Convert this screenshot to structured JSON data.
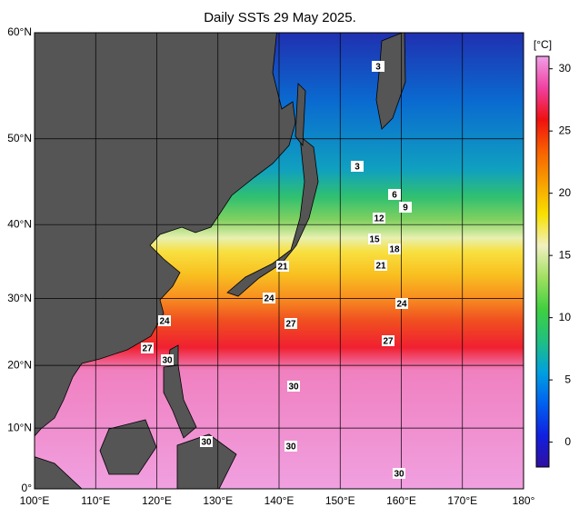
{
  "title": "Daily SSTs 29 May 2025.",
  "map": {
    "lonlim": [
      100,
      180
    ],
    "latlim": [
      0,
      60
    ],
    "lon_ticks": [
      {
        "value": 100,
        "label": "100°E"
      },
      {
        "value": 110,
        "label": "110°E"
      },
      {
        "value": 120,
        "label": "120°E"
      },
      {
        "value": 130,
        "label": "130°E"
      },
      {
        "value": 140,
        "label": "140°E"
      },
      {
        "value": 150,
        "label": "150°E"
      },
      {
        "value": 160,
        "label": "160°E"
      },
      {
        "value": 170,
        "label": "170°E"
      },
      {
        "value": 180,
        "label": "180°"
      }
    ],
    "lat_ticks": [
      {
        "value": 0,
        "label": "0°"
      },
      {
        "value": 10,
        "label": "10°N"
      },
      {
        "value": 20,
        "label": "20°N"
      },
      {
        "value": 30,
        "label": "30°N"
      },
      {
        "value": 40,
        "label": "40°N"
      },
      {
        "value": 50,
        "label": "50°N"
      },
      {
        "value": 60,
        "label": "60°N"
      }
    ],
    "contour_labels": [
      3,
      3,
      6,
      9,
      12,
      15,
      18,
      21,
      21,
      24,
      24,
      24,
      27,
      27,
      27,
      30,
      30,
      30,
      30,
      30
    ]
  },
  "colorbar": {
    "unit": "[°C]",
    "lim": [
      -2,
      31
    ],
    "ticks": [
      0,
      5,
      10,
      15,
      20,
      25,
      30
    ],
    "colormap": [
      "#3010a0",
      "#1020e0",
      "#0060f0",
      "#00a0e0",
      "#20c080",
      "#40d040",
      "#a0e060",
      "#f0f0c0",
      "#f8e000",
      "#f8a000",
      "#f86000",
      "#f01010",
      "#f040a0",
      "#f0a0e8"
    ]
  }
}
